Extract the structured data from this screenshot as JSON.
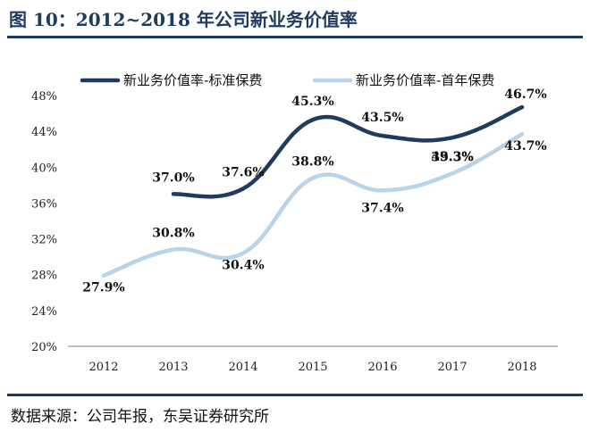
{
  "header": {
    "title": "图 10：2012~2018 年公司新业务价值率"
  },
  "footer": {
    "source": "数据来源：公司年报，东吴证券研究所"
  },
  "chart_data": {
    "type": "line",
    "title": "图 10：2012~2018 年公司新业务价值率",
    "x": [
      "2012",
      "2013",
      "2014",
      "2015",
      "2016",
      "2017",
      "2018"
    ],
    "ylim": [
      0.2,
      0.48
    ],
    "yticks": [
      "20%",
      "24%",
      "28%",
      "32%",
      "36%",
      "40%",
      "44%",
      "48%"
    ],
    "ytick_values": [
      0.2,
      0.24,
      0.28,
      0.32,
      0.36,
      0.4,
      0.44,
      0.48
    ],
    "grid": false,
    "legend_position": "top",
    "series": [
      {
        "name": "新业务价值率-标准保费",
        "color": "#1f3b60",
        "values": [
          null,
          0.37,
          0.376,
          0.453,
          0.435,
          0.433,
          0.467
        ],
        "labels": [
          null,
          "37.0%",
          "37.6%",
          "45.3%",
          "43.5%",
          "43.3%",
          "46.7%"
        ]
      },
      {
        "name": "新业务价值率-首年保费",
        "color": "#b8d3ea",
        "values": [
          0.279,
          0.308,
          0.304,
          0.388,
          0.374,
          0.393,
          0.437
        ],
        "labels": [
          "27.9%",
          "30.8%",
          "30.4%",
          "38.8%",
          "37.4%",
          "39.3%",
          "43.7%"
        ]
      }
    ]
  }
}
